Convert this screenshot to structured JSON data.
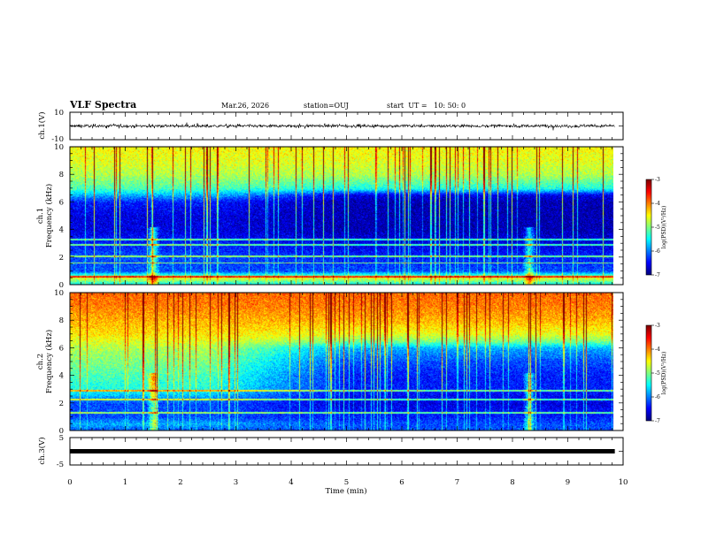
{
  "header": {
    "title": "VLF Spectra",
    "date": "Mar.26, 2026",
    "station": "station=OUJ",
    "start_time": "start  UT =   10: 50: 0"
  },
  "chart_data": [
    {
      "type": "line",
      "name": "ch1-waveform",
      "ylabel": "ch.1(V)",
      "ylim": [
        -10,
        10
      ],
      "y_tick_labels": [
        "10",
        "-10"
      ],
      "x_range_min": [
        0,
        9.85
      ],
      "baseline": 0,
      "amplitude_approx": 1.5
    },
    {
      "type": "heatmap",
      "name": "ch1-spectrogram",
      "ylabel_top": "ch.1",
      "ylabel_bottom": "Frequency (kHz)",
      "ylim": [
        0,
        10
      ],
      "y_tick_labels": [
        "0",
        "2",
        "4",
        "6",
        "8",
        "10"
      ],
      "colorbar": {
        "label": "log(PSD)(V²/Hz)",
        "range": [
          -7,
          -3
        ],
        "tick_labels": [
          "-3",
          "-4",
          "-5",
          "-6",
          "-7"
        ]
      },
      "log_psd_profile": {
        "freq_khz": [
          0,
          0.5,
          1,
          2,
          3,
          4,
          5,
          6,
          6.5,
          7,
          8,
          9,
          10
        ],
        "log_psd_early": [
          -5.6,
          -4.6,
          -6.2,
          -6.2,
          -6.4,
          -6.6,
          -6.6,
          -6.4,
          -5.8,
          -5.2,
          -4.8,
          -4.6,
          -4.5
        ],
        "log_psd_late": [
          -5.6,
          -4.6,
          -6.2,
          -6.4,
          -6.6,
          -6.8,
          -6.8,
          -6.8,
          -6.6,
          -5.4,
          -4.8,
          -4.6,
          -4.5
        ]
      },
      "bursts_min": [
        1.5,
        8.3
      ],
      "tones_khz": [
        0.6,
        1.6,
        2.1,
        2.9,
        3.3
      ]
    },
    {
      "type": "heatmap",
      "name": "ch2-spectrogram",
      "ylabel_top": "ch.2",
      "ylabel_bottom": "Frequency (kHz)",
      "ylim": [
        0,
        10
      ],
      "y_tick_labels": [
        "0",
        "2",
        "4",
        "6",
        "8",
        "10"
      ],
      "colorbar": {
        "label": "log(PSD)(V²/Hz)",
        "range": [
          -7,
          -3
        ],
        "tick_labels": [
          "-3",
          "-4",
          "-5",
          "-6",
          "-7"
        ]
      },
      "log_psd_profile": {
        "freq_khz": [
          0,
          0.5,
          1,
          2,
          3,
          4,
          5,
          6,
          6.5,
          7,
          8,
          9,
          10
        ],
        "log_psd_early": [
          -6.2,
          -5.8,
          -6.2,
          -6.2,
          -5.4,
          -5.2,
          -5.0,
          -4.8,
          -4.6,
          -4.4,
          -4.2,
          -4.0,
          -3.9
        ],
        "log_psd_late": [
          -6.2,
          -6.2,
          -6.4,
          -6.6,
          -6.4,
          -6.4,
          -6.2,
          -5.8,
          -5.0,
          -4.6,
          -4.2,
          -4.0,
          -3.9
        ]
      },
      "bursts_min": [
        1.5,
        8.3
      ],
      "tones_khz": [
        1.3,
        2.3,
        2.9
      ]
    },
    {
      "type": "line",
      "name": "ch3-waveform",
      "ylabel": "ch.3(V)",
      "ylim": [
        -5,
        5
      ],
      "y_tick_labels": [
        "5",
        "-5"
      ],
      "x_range_min": [
        0,
        9.85
      ],
      "baseline": 0,
      "amplitude_approx": 0.3
    }
  ],
  "x_axis": {
    "xlabel": "Time (min)",
    "xlim": [
      0,
      10
    ],
    "tick_labels": [
      "0",
      "1",
      "2",
      "3",
      "4",
      "5",
      "6",
      "7",
      "8",
      "9",
      "10"
    ]
  }
}
